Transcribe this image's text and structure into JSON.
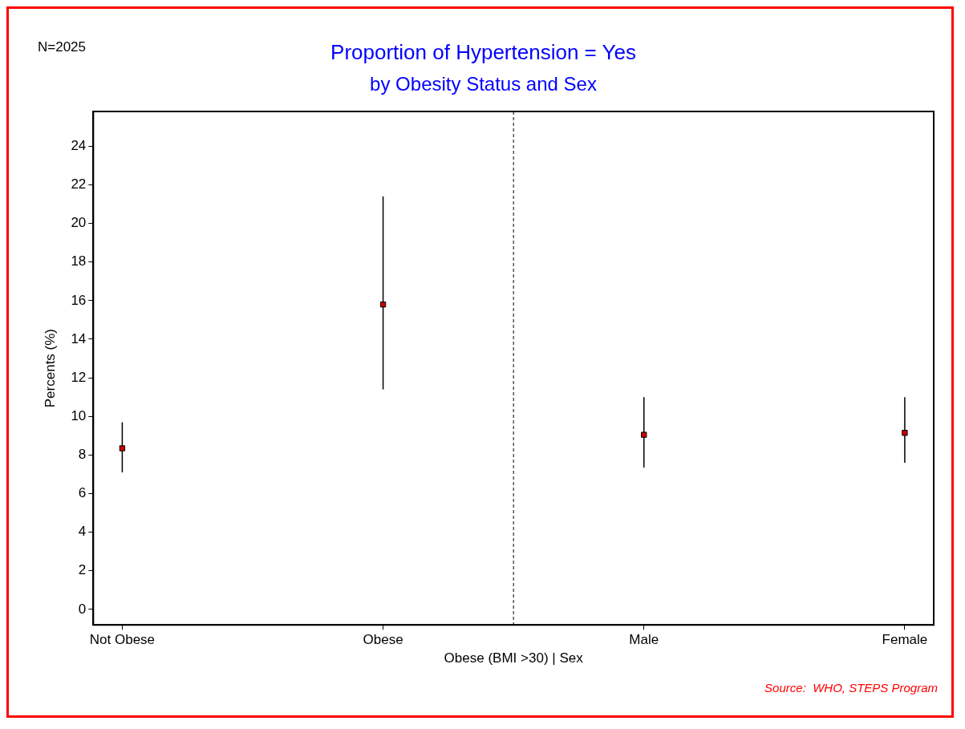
{
  "chart_data": {
    "type": "scatter",
    "title": "Proportion of Hypertension = Yes",
    "subtitle": "by Obesity Status and Sex",
    "xlabel": "Obese (BMI >30) | Sex",
    "ylabel": "Percents (%)",
    "categories": [
      "Not Obese",
      "Obese",
      "Male",
      "Female"
    ],
    "series": [
      {
        "color": "#cc0000",
        "values": [
          8.35,
          15.8,
          9.05,
          9.15
        ],
        "errors": [
          [
            7.1,
            9.7
          ],
          [
            11.4,
            21.4
          ],
          [
            7.35,
            11.0
          ],
          [
            7.6,
            11.0
          ]
        ]
      }
    ],
    "ylim": [
      -0.8,
      25.8
    ],
    "yticks": [
      0,
      2,
      4,
      6,
      8,
      10,
      12,
      14,
      16,
      18,
      20,
      22,
      24
    ],
    "marker": "square",
    "grid": false,
    "legend": false,
    "annotations": [
      "N=2025",
      "Source:  WHO, STEPS Program"
    ]
  }
}
